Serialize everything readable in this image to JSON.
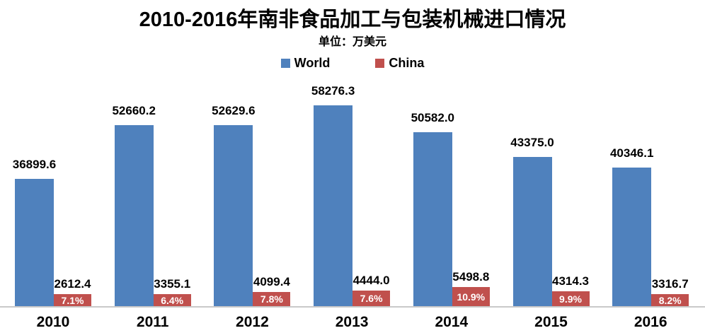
{
  "header": {
    "title": "2010-2016年南非食品加工与包装机械进口情况",
    "subtitle": "单位：万美元"
  },
  "legend": [
    {
      "label": "World",
      "color": "#4F81BD"
    },
    {
      "label": "China",
      "color": "#C0504D"
    }
  ],
  "colors": {
    "world_bar": "#4F81BD",
    "china_bar": "#C0504D",
    "axis_line": "#C9C9C9",
    "pct_text": "#FFFFFF",
    "label_text": "#000000",
    "background": "#FFFFFF"
  },
  "chart_data": {
    "type": "bar",
    "title": "2010-2016年南非食品加工与包装机械进口情况",
    "unit_label": "单位：万美元",
    "categories": [
      "2010",
      "2011",
      "2012",
      "2013",
      "2014",
      "2015",
      "2016"
    ],
    "series": [
      {
        "name": "World",
        "color": "#4F81BD",
        "values": [
          36899.6,
          52660.2,
          52629.6,
          58276.3,
          50582.0,
          43375.0,
          40346.1
        ],
        "labels": [
          "36899.6",
          "52660.2",
          "52629.6",
          "58276.3",
          "50582.0",
          "43375.0",
          "40346.1"
        ]
      },
      {
        "name": "China",
        "color": "#C0504D",
        "values": [
          2612.4,
          3355.1,
          4099.4,
          4444.0,
          5498.8,
          4314.3,
          3316.7
        ],
        "labels": [
          "2612.4",
          "3355.1",
          "4099.4",
          "4444.0",
          "5498.8",
          "4314.3",
          "3316.7"
        ],
        "share_labels": [
          "7.1%",
          "6.4%",
          "7.8%",
          "7.6%",
          "10.9%",
          "9.9%",
          "8.2%"
        ],
        "share_values_pct": [
          7.1,
          6.4,
          7.8,
          7.6,
          10.9,
          9.9,
          8.2
        ]
      }
    ],
    "ylim": [
      0,
      60000
    ],
    "grid": false,
    "y_axis_shown": false,
    "legend_position": "top",
    "value_labels_shown": true
  }
}
